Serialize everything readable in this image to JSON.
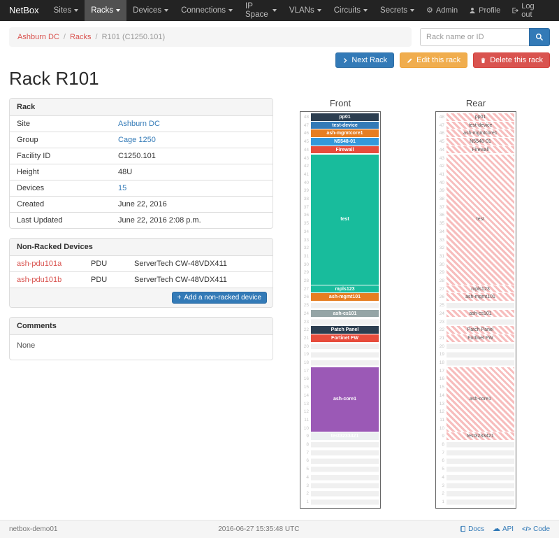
{
  "navbar": {
    "brand": "NetBox",
    "items": [
      {
        "label": "Sites",
        "active": false
      },
      {
        "label": "Racks",
        "active": true
      },
      {
        "label": "Devices",
        "active": false
      },
      {
        "label": "Connections",
        "active": false
      },
      {
        "label": "IP Space",
        "active": false
      },
      {
        "label": "VLANs",
        "active": false
      },
      {
        "label": "Circuits",
        "active": false
      },
      {
        "label": "Secrets",
        "active": false
      }
    ],
    "right_items": [
      {
        "icon": "gear-icon",
        "label": "Admin"
      },
      {
        "icon": "user-icon",
        "label": "Profile"
      },
      {
        "icon": "logout-icon",
        "label": "Log out"
      }
    ]
  },
  "breadcrumb": [
    {
      "label": "Ashburn DC",
      "link": true
    },
    {
      "label": "Racks",
      "link": true
    },
    {
      "label": "R101 (C1250.101)",
      "link": false
    }
  ],
  "search": {
    "placeholder": "Rack name or ID"
  },
  "actions": {
    "next_rack": "Next Rack",
    "edit_rack": "Edit this rack",
    "delete_rack": "Delete this rack"
  },
  "page_title": "Rack R101",
  "rack_info": {
    "title": "Rack",
    "rows": [
      {
        "label": "Site",
        "value": "Ashburn DC",
        "link": "blue"
      },
      {
        "label": "Group",
        "value": "Cage 1250",
        "link": "blue"
      },
      {
        "label": "Facility ID",
        "value": "C1250.101",
        "link": ""
      },
      {
        "label": "Height",
        "value": "48U",
        "link": ""
      },
      {
        "label": "Devices",
        "value": "15",
        "link": "blue"
      },
      {
        "label": "Created",
        "value": "June 22, 2016",
        "link": ""
      },
      {
        "label": "Last Updated",
        "value": "June 22, 2016 2:08 p.m.",
        "link": ""
      }
    ]
  },
  "non_racked_devices": {
    "title": "Non-Racked Devices",
    "rows": [
      {
        "name": "ash-pdu101a",
        "role": "PDU",
        "device_type": "ServerTech CW-48VDX411"
      },
      {
        "name": "ash-pdu101b",
        "role": "PDU",
        "device_type": "ServerTech CW-48VDX411"
      }
    ],
    "add_button_label": "Add a non-racked device"
  },
  "comments": {
    "title": "Comments",
    "body": "None"
  },
  "elevation": {
    "total_units": 48,
    "front_title": "Front",
    "rear_title": "Rear",
    "rear_style": {
      "stripe_color": "#f7bdbd",
      "text_color": "#555555"
    },
    "devices": [
      {
        "name": "pp01",
        "top_unit": 48,
        "u_height": 1,
        "color": "#2c3e50",
        "text_color": "#ffffff"
      },
      {
        "name": "test-device",
        "top_unit": 47,
        "u_height": 1,
        "color": "#337ab7",
        "text_color": "#ffffff"
      },
      {
        "name": "ash-mgmtcore1",
        "top_unit": 46,
        "u_height": 1,
        "color": "#e67e22",
        "text_color": "#ffffff"
      },
      {
        "name": "N5548-01",
        "top_unit": 45,
        "u_height": 1,
        "color": "#3498db",
        "text_color": "#ffffff"
      },
      {
        "name": "Firewall",
        "top_unit": 44,
        "u_height": 1,
        "color": "#e74c3c",
        "text_color": "#ffffff"
      },
      {
        "name": "test",
        "top_unit": 43,
        "u_height": 16,
        "color": "#18bc9c",
        "text_color": "#ffffff"
      },
      {
        "name": "mpls123",
        "top_unit": 27,
        "u_height": 1,
        "color": "#18bc9c",
        "text_color": "#ffffff"
      },
      {
        "name": "ash-mgmt101",
        "top_unit": 26,
        "u_height": 1,
        "color": "#e67e22",
        "text_color": "#ffffff"
      },
      {
        "name": "ash-cs101",
        "top_unit": 24,
        "u_height": 1,
        "color": "#95a5a6",
        "text_color": "#ffffff"
      },
      {
        "name": "Patch Panel",
        "top_unit": 22,
        "u_height": 1,
        "color": "#2c3e50",
        "text_color": "#ffffff"
      },
      {
        "name": "Fortinet FW",
        "top_unit": 21,
        "u_height": 1,
        "color": "#e74c3c",
        "text_color": "#ffffff"
      },
      {
        "name": "ash-core1",
        "top_unit": 17,
        "u_height": 8,
        "color": "#9b59b6",
        "text_color": "#ffffff"
      },
      {
        "name": "test3233421",
        "top_unit": 9,
        "u_height": 1,
        "color": "#ecf0f1",
        "text_color": "#ffffff"
      }
    ]
  },
  "footer": {
    "hostname": "netbox-demo01",
    "timestamp": "2016-06-27 15:35:48 UTC",
    "links": [
      {
        "icon": "book-icon",
        "label": "Docs"
      },
      {
        "icon": "cloud-icon",
        "label": "API"
      },
      {
        "icon": "code-icon",
        "label": "Code"
      }
    ]
  }
}
